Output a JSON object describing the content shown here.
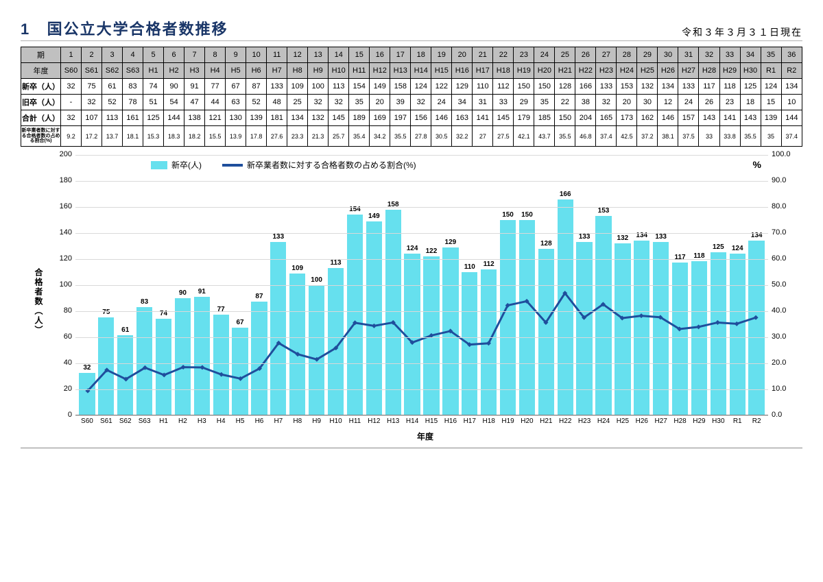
{
  "header": {
    "number": "1",
    "title": "国公立大学合格者数推移",
    "date": "令和３年３月３１日現在"
  },
  "table": {
    "row_headers": {
      "period": "期",
      "year": "年度",
      "new_grad": "新卒（人）",
      "old_grad": "旧卒（人）",
      "total": "合計（人）",
      "pct": "新卒業者数に対する合格者数の占める割合(%)"
    },
    "periods": [
      "1",
      "2",
      "3",
      "4",
      "5",
      "6",
      "7",
      "8",
      "9",
      "10",
      "11",
      "12",
      "13",
      "14",
      "15",
      "16",
      "17",
      "18",
      "19",
      "20",
      "21",
      "22",
      "23",
      "24",
      "25",
      "26",
      "27",
      "28",
      "29",
      "30",
      "31",
      "32",
      "33",
      "34",
      "35",
      "36"
    ],
    "years": [
      "S60",
      "S61",
      "S62",
      "S63",
      "H1",
      "H2",
      "H3",
      "H4",
      "H5",
      "H6",
      "H7",
      "H8",
      "H9",
      "H10",
      "H11",
      "H12",
      "H13",
      "H14",
      "H15",
      "H16",
      "H17",
      "H18",
      "H19",
      "H20",
      "H21",
      "H22",
      "H23",
      "H24",
      "H25",
      "H26",
      "H27",
      "H28",
      "H29",
      "H30",
      "R1",
      "R2"
    ],
    "new_grad": [
      32,
      75,
      61,
      83,
      74,
      90,
      91,
      77,
      67,
      87,
      133,
      109,
      100,
      113,
      154,
      149,
      158,
      124,
      122,
      129,
      110,
      112,
      150,
      150,
      128,
      166,
      133,
      153,
      132,
      134,
      133,
      117,
      118,
      125,
      124,
      134
    ],
    "old_grad": [
      "-",
      32,
      52,
      78,
      51,
      54,
      47,
      44,
      63,
      52,
      48,
      25,
      32,
      32,
      35,
      20,
      39,
      32,
      24,
      34,
      31,
      33,
      29,
      35,
      22,
      38,
      32,
      20,
      30,
      12,
      24,
      26,
      23,
      18,
      15,
      10
    ],
    "total": [
      32,
      107,
      113,
      161,
      125,
      144,
      138,
      121,
      130,
      139,
      181,
      134,
      132,
      145,
      189,
      169,
      197,
      156,
      146,
      163,
      141,
      145,
      179,
      185,
      150,
      204,
      165,
      173,
      162,
      146,
      157,
      143,
      141,
      143,
      139,
      144
    ],
    "pct": [
      9.2,
      17.2,
      13.7,
      18.1,
      15.3,
      18.3,
      18.2,
      15.5,
      13.9,
      17.8,
      27.6,
      23.3,
      21.3,
      25.7,
      35.4,
      34.2,
      35.5,
      27.8,
      30.5,
      32.2,
      27.0,
      27.5,
      42.1,
      43.7,
      35.5,
      46.8,
      37.4,
      42.5,
      37.2,
      38.1,
      37.5,
      33.0,
      33.8,
      35.5,
      35.0,
      37.4
    ]
  },
  "chart": {
    "type": "bar+line",
    "bar_color": "#66e0ee",
    "line_color": "#1f4e9c",
    "grid_color": "#d9d9d9",
    "background_color": "#ffffff",
    "y_left": {
      "label": "合格者数（人）",
      "min": 0,
      "max": 200,
      "step": 20
    },
    "y_right": {
      "label": "%",
      "min": 0,
      "max": 100,
      "step": 10
    },
    "x_label": "年度",
    "legend": {
      "bar": "新卒(人)",
      "line": "新卒業者数に対する合格者数の占める割合(%)"
    },
    "line_width": 3,
    "bar_label_fontsize": 10
  }
}
